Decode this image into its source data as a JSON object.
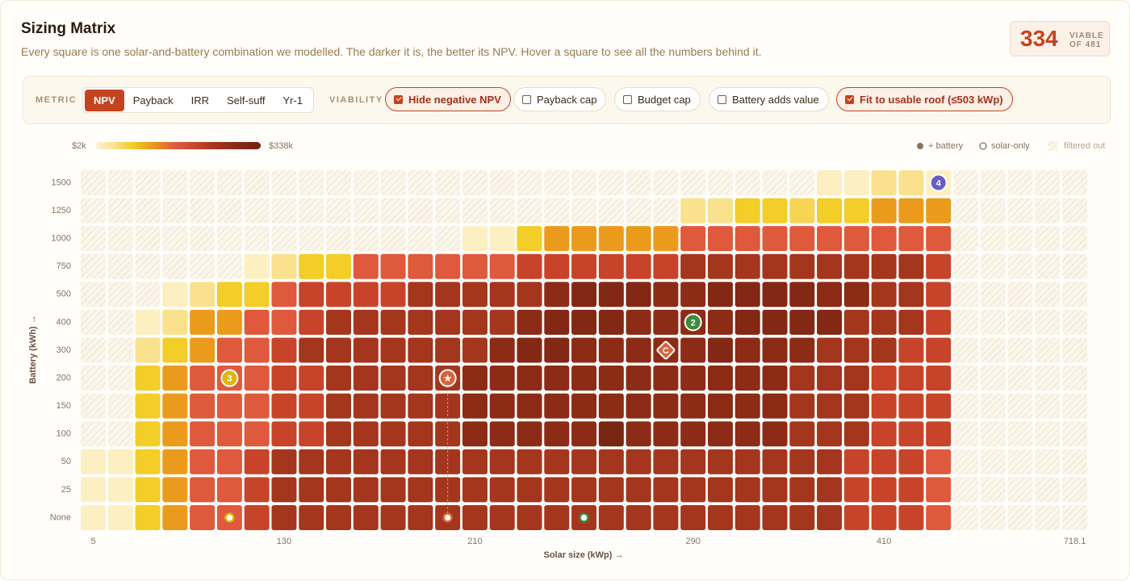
{
  "header": {
    "title": "Sizing Matrix",
    "subtitle": "Every square is one solar-and-battery combination we modelled. The darker it is, the better its NPV. Hover a square to see all the numbers behind it.",
    "count": 334,
    "count_label": "VIABLE",
    "count_total": "OF 481"
  },
  "controls": {
    "metric_label": "METRIC",
    "metrics": [
      "NPV",
      "Payback",
      "IRR",
      "Self-suff",
      "Yr-1"
    ],
    "active_metric": 0,
    "viability_label": "VIABILITY",
    "filters": [
      {
        "label": "Hide negative NPV",
        "checked": true
      },
      {
        "label": "Payback cap",
        "checked": false
      },
      {
        "label": "Budget cap",
        "checked": false
      },
      {
        "label": "Battery adds value",
        "checked": false
      },
      {
        "label": "Fit to usable roof (≤503 kWp)",
        "checked": true
      }
    ]
  },
  "chart_data": {
    "type": "heatmap",
    "xlabel": "Solar size (kWp) →",
    "ylabel": "Battery (kWh) →",
    "colorbar_min_label": "$2k",
    "colorbar_max_label": "$338k",
    "zlim": [
      2,
      338
    ],
    "colorscale": [
      [
        0,
        "#fdf3d0"
      ],
      [
        0.12,
        "#f9e08a"
      ],
      [
        0.22,
        "#f3cc25"
      ],
      [
        0.33,
        "#ec9e1a"
      ],
      [
        0.48,
        "#e05a3e"
      ],
      [
        0.6,
        "#c8452a"
      ],
      [
        0.72,
        "#a5361e"
      ],
      [
        0.85,
        "#8a2a15"
      ],
      [
        1,
        "#6e2211"
      ]
    ],
    "legend": [
      "+ battery",
      "solar-only",
      "filtered out"
    ],
    "y_categories": [
      "1500",
      "1250",
      "1000",
      "750",
      "500",
      "400",
      "300",
      "200",
      "150",
      "100",
      "50",
      "25",
      "None"
    ],
    "x_count": 37,
    "x_labels": [
      {
        "index": 0,
        "label": "5"
      },
      {
        "index": 7,
        "label": "130"
      },
      {
        "index": 14,
        "label": "210"
      },
      {
        "index": 22,
        "label": "290"
      },
      {
        "index": 29,
        "label": "410"
      },
      {
        "index": 36,
        "label": "718.1"
      }
    ],
    "matrix": [
      [
        null,
        null,
        null,
        null,
        null,
        null,
        null,
        null,
        null,
        null,
        null,
        null,
        null,
        null,
        null,
        null,
        null,
        null,
        null,
        null,
        null,
        null,
        null,
        null,
        null,
        null,
        null,
        10,
        10,
        40,
        40,
        10,
        null,
        null,
        null,
        null,
        null
      ],
      [
        null,
        null,
        null,
        null,
        null,
        null,
        null,
        null,
        null,
        null,
        null,
        null,
        null,
        null,
        null,
        null,
        null,
        null,
        null,
        null,
        null,
        null,
        40,
        40,
        75,
        75,
        60,
        75,
        75,
        115,
        115,
        115,
        null,
        null,
        null,
        null,
        null
      ],
      [
        null,
        null,
        null,
        null,
        null,
        null,
        null,
        null,
        null,
        null,
        null,
        null,
        null,
        null,
        10,
        10,
        75,
        115,
        115,
        115,
        115,
        115,
        165,
        165,
        165,
        165,
        165,
        165,
        165,
        165,
        165,
        165,
        null,
        null,
        null,
        null,
        null
      ],
      [
        null,
        null,
        null,
        null,
        null,
        null,
        10,
        40,
        75,
        75,
        165,
        165,
        165,
        165,
        165,
        165,
        205,
        205,
        205,
        205,
        205,
        205,
        245,
        245,
        245,
        245,
        245,
        245,
        245,
        245,
        245,
        205,
        null,
        null,
        null,
        null,
        null
      ],
      [
        null,
        null,
        null,
        10,
        40,
        75,
        75,
        165,
        205,
        205,
        205,
        205,
        245,
        245,
        245,
        245,
        245,
        285,
        300,
        300,
        300,
        285,
        285,
        300,
        300,
        300,
        300,
        285,
        285,
        245,
        245,
        205,
        null,
        null,
        null,
        null,
        null
      ],
      [
        null,
        null,
        10,
        40,
        115,
        115,
        165,
        165,
        205,
        245,
        245,
        245,
        245,
        245,
        245,
        245,
        285,
        300,
        300,
        300,
        285,
        285,
        285,
        285,
        300,
        300,
        300,
        300,
        245,
        245,
        245,
        205,
        null,
        null,
        null,
        null,
        null
      ],
      [
        null,
        null,
        40,
        75,
        115,
        165,
        165,
        205,
        245,
        245,
        245,
        245,
        245,
        245,
        245,
        285,
        300,
        300,
        285,
        285,
        285,
        285,
        285,
        300,
        285,
        285,
        285,
        245,
        245,
        245,
        205,
        205,
        null,
        null,
        null,
        null,
        null
      ],
      [
        null,
        null,
        75,
        115,
        165,
        165,
        165,
        205,
        205,
        245,
        245,
        245,
        245,
        245,
        285,
        285,
        285,
        285,
        285,
        285,
        285,
        285,
        285,
        285,
        285,
        285,
        245,
        245,
        245,
        205,
        205,
        205,
        null,
        null,
        null,
        null,
        null
      ],
      [
        null,
        null,
        75,
        115,
        165,
        165,
        165,
        205,
        205,
        245,
        245,
        245,
        245,
        245,
        285,
        285,
        285,
        285,
        285,
        285,
        285,
        285,
        285,
        285,
        285,
        285,
        245,
        245,
        245,
        205,
        205,
        205,
        null,
        null,
        null,
        null,
        null
      ],
      [
        null,
        null,
        75,
        115,
        165,
        165,
        165,
        205,
        205,
        245,
        245,
        245,
        245,
        245,
        285,
        285,
        285,
        285,
        285,
        320,
        285,
        285,
        285,
        285,
        285,
        285,
        245,
        245,
        245,
        205,
        205,
        205,
        null,
        null,
        null,
        null,
        null
      ],
      [
        10,
        10,
        75,
        115,
        165,
        165,
        205,
        245,
        245,
        245,
        245,
        245,
        245,
        245,
        245,
        245,
        245,
        245,
        245,
        245,
        245,
        245,
        245,
        245,
        245,
        245,
        245,
        245,
        205,
        205,
        205,
        165,
        null,
        null,
        null,
        null,
        null
      ],
      [
        10,
        10,
        75,
        115,
        165,
        165,
        205,
        245,
        245,
        245,
        245,
        245,
        245,
        245,
        245,
        245,
        245,
        245,
        245,
        245,
        245,
        245,
        245,
        245,
        245,
        245,
        245,
        245,
        205,
        205,
        205,
        165,
        null,
        null,
        null,
        null,
        null
      ],
      [
        10,
        10,
        75,
        115,
        165,
        165,
        205,
        245,
        245,
        245,
        245,
        245,
        245,
        245,
        245,
        245,
        245,
        245,
        245,
        245,
        245,
        245,
        245,
        245,
        245,
        245,
        245,
        245,
        205,
        205,
        205,
        165,
        null,
        null,
        null,
        null,
        null
      ]
    ],
    "markers": [
      {
        "label": "4",
        "row": 0,
        "col": 31,
        "color": "#6a5cc8",
        "shape": "circle"
      },
      {
        "label": "2",
        "row": 5,
        "col": 22,
        "color": "#3f8a3c",
        "shape": "circle"
      },
      {
        "label": "C",
        "row": 6,
        "col": 21,
        "color": "#d9623a",
        "shape": "diamond"
      },
      {
        "label": "3",
        "row": 7,
        "col": 5,
        "color": "#e0b414",
        "shape": "circle"
      },
      {
        "label": "★",
        "row": 7,
        "col": 13,
        "color": "#d9623a",
        "shape": "circle"
      }
    ],
    "dots": [
      {
        "row": 12,
        "col": 5,
        "color": "#e0b414"
      },
      {
        "row": 12,
        "col": 13,
        "color": "#d9623a"
      },
      {
        "row": 12,
        "col": 18,
        "color": "#3f8a3c"
      }
    ],
    "guide": {
      "col": 13,
      "from_row": 7,
      "to_row": 12
    }
  }
}
